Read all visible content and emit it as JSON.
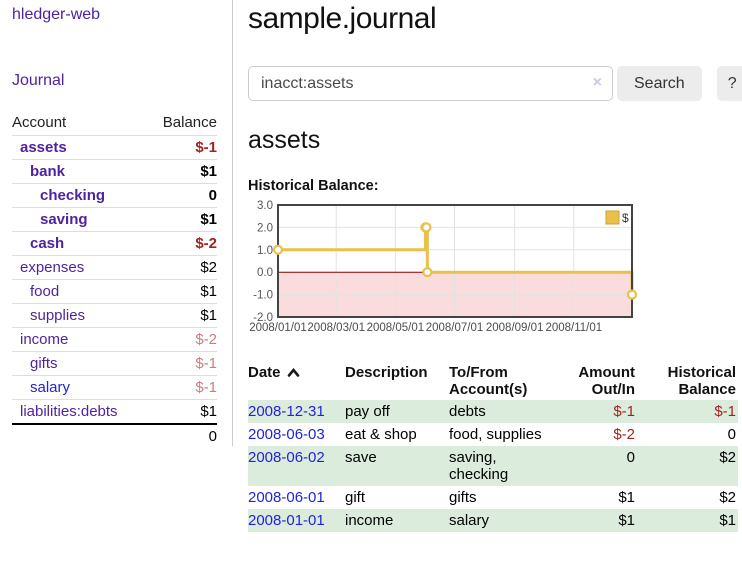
{
  "brand": "hledger-web",
  "nav": {
    "journal": "Journal"
  },
  "sidebar": {
    "account_header": "Account",
    "balance_header": "Balance",
    "rows": [
      {
        "account": "assets",
        "balance": "$-1",
        "indent": 0,
        "matched": true,
        "negative": "strong"
      },
      {
        "account": "bank",
        "balance": "$1",
        "indent": 1,
        "matched": true,
        "negative": "none"
      },
      {
        "account": "checking",
        "balance": "0",
        "indent": 2,
        "matched": true,
        "negative": "none"
      },
      {
        "account": "saving",
        "balance": "$1",
        "indent": 2,
        "matched": true,
        "negative": "none"
      },
      {
        "account": "cash",
        "balance": "$-2",
        "indent": 1,
        "matched": true,
        "negative": "strong"
      },
      {
        "account": "expenses",
        "balance": "$2",
        "indent": 0,
        "matched": false,
        "negative": "none"
      },
      {
        "account": "food",
        "balance": "$1",
        "indent": 1,
        "matched": false,
        "negative": "none"
      },
      {
        "account": "supplies",
        "balance": "$1",
        "indent": 1,
        "matched": false,
        "negative": "none"
      },
      {
        "account": "income",
        "balance": "$-2",
        "indent": 0,
        "matched": false,
        "negative": "soft"
      },
      {
        "account": "gifts",
        "balance": "$-1",
        "indent": 1,
        "matched": false,
        "negative": "soft"
      },
      {
        "account": "salary",
        "balance": "$-1",
        "indent": 1,
        "matched": false,
        "negative": "soft"
      },
      {
        "account": "liabilities:debts",
        "balance": "$1",
        "indent": 0,
        "matched": false,
        "negative": "none"
      }
    ],
    "total": "0"
  },
  "header": {
    "title": "sample.journal"
  },
  "search": {
    "value": "inacct:assets",
    "clear_icon": "×",
    "submit_label": "Search",
    "help_label": "?"
  },
  "account_page": {
    "title": "assets",
    "chart_label": "Historical Balance:"
  },
  "chart_data": {
    "type": "line",
    "step": true,
    "title": "Historical Balance:",
    "series": [
      {
        "name": "$",
        "color": "#e8c04a",
        "points": [
          [
            "2008-01-01",
            1
          ],
          [
            "2008-06-01",
            2
          ],
          [
            "2008-06-02",
            2
          ],
          [
            "2008-06-03",
            0
          ],
          [
            "2008-12-31",
            -1
          ]
        ]
      }
    ],
    "x_range": [
      "2008-01-01",
      "2008-12-31"
    ],
    "ylim": [
      -2,
      3
    ],
    "y_ticks": [
      3.0,
      2.0,
      1.0,
      0.0,
      -1.0,
      -2.0
    ],
    "x_ticks": [
      "2008/01/01",
      "2008/03/01",
      "2008/05/01",
      "2008/07/01",
      "2008/09/01",
      "2008/11/01"
    ],
    "legend": {
      "label": "$",
      "position": "top-right"
    },
    "grid": true,
    "negative_region_color": "#fbdcdc",
    "zero_line_color": "#8b0000",
    "border_color": "#444444"
  },
  "register": {
    "headers": {
      "date": "Date",
      "description": "Description",
      "tofrom": "To/From Account(s)",
      "amount": "Amount Out/In",
      "balance": "Historical Balance"
    },
    "rows": [
      {
        "date": "2008-12-31",
        "description": "pay off",
        "accounts": "debts",
        "amount": "$-1",
        "balance": "$-1"
      },
      {
        "date": "2008-06-03",
        "description": "eat & shop",
        "accounts": "food, supplies",
        "amount": "$-2",
        "balance": "0"
      },
      {
        "date": "2008-06-02",
        "description": "save",
        "accounts": "saving, checking",
        "amount": "0",
        "balance": "$2"
      },
      {
        "date": "2008-06-01",
        "description": "gift",
        "accounts": "gifts",
        "amount": "$1",
        "balance": "$2"
      },
      {
        "date": "2008-01-01",
        "description": "income",
        "accounts": "salary",
        "amount": "$1",
        "balance": "$1"
      }
    ]
  },
  "colors": {
    "link_purple": "#4f23a0",
    "link_blue": "#2222dd",
    "negative_strong": "#a22222",
    "negative_soft": "#c4807f",
    "row_stripe_green": "#dcecdc",
    "chart_line": "#e8c04a",
    "chart_negative_bg": "#fbdcdc",
    "zero_line": "#8b0000"
  }
}
